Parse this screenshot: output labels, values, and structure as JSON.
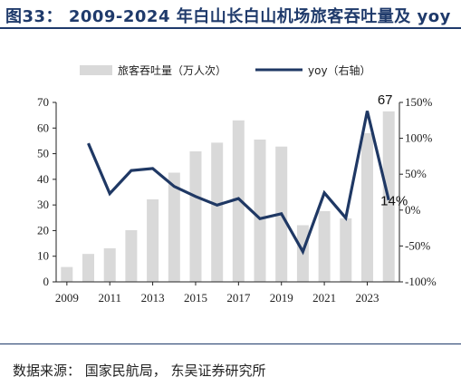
{
  "header": {
    "title": "图33： 2009-2024 年白山长白山机场旅客吞吐量及 yoy",
    "source": "数据来源： 国家民航局， 东吴证券研究所"
  },
  "colors": {
    "bar": "#d9d9d9",
    "line": "#1f3864",
    "title": "#1f3a6b"
  },
  "chart_data": {
    "type": "bar+line",
    "title": "2009-2024 年白山长白山机场旅客吞吐量及 yoy",
    "legend_placement": "top",
    "categories": [
      "2009",
      "2010",
      "2011",
      "2012",
      "2013",
      "2014",
      "2015",
      "2016",
      "2017",
      "2018",
      "2019",
      "2020",
      "2021",
      "2022",
      "2023",
      "2024"
    ],
    "x_tick_labels": [
      "2009",
      "2011",
      "2013",
      "2015",
      "2017",
      "2019",
      "2021",
      "2023"
    ],
    "series": [
      {
        "name": "旅客吞吐量（万人次）",
        "type": "bar",
        "axis": "left",
        "values": [
          5.8,
          10.9,
          13.1,
          20.2,
          32.2,
          42.6,
          50.9,
          54.3,
          63.0,
          55.5,
          52.8,
          22.1,
          27.6,
          24.8,
          58.0,
          66.5
        ]
      },
      {
        "name": "yoy（右轴）",
        "type": "line",
        "axis": "right",
        "values": [
          null,
          93,
          23,
          55,
          58,
          33,
          19,
          7,
          16,
          -12,
          -5,
          -58,
          24,
          -11,
          138,
          14
        ]
      }
    ],
    "y_left": {
      "ylim": [
        0,
        70
      ],
      "ticks": [
        "0",
        "10",
        "20",
        "30",
        "40",
        "50",
        "60",
        "70"
      ]
    },
    "y_right": {
      "ylim": [
        -100,
        150
      ],
      "ticks": [
        "-100%",
        "-50%",
        "0%",
        "50%",
        "100%",
        "150%"
      ]
    },
    "annotations": [
      {
        "text": "67",
        "series": 0,
        "index": 15
      },
      {
        "text": "14%",
        "series": 1,
        "index": 15
      }
    ],
    "grid": false
  }
}
